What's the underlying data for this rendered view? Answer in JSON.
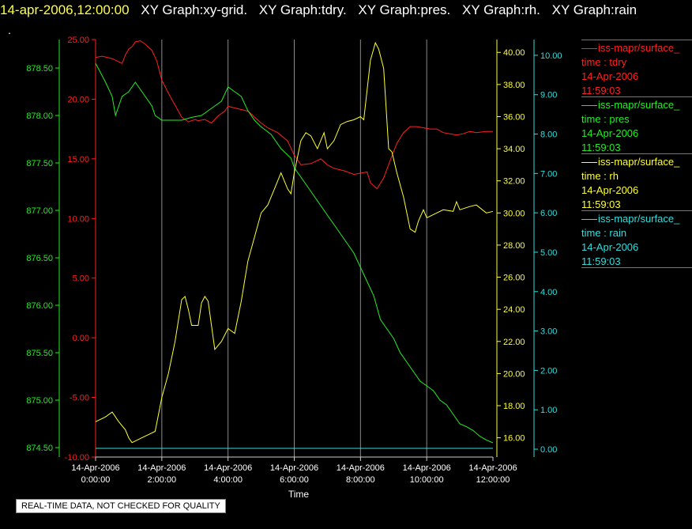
{
  "header": {
    "timestamp": "14-apr-2006,12:00:00",
    "graphs": [
      "XY Graph:xy-grid.",
      "XY Graph:tdry.",
      "XY Graph:pres.",
      "XY Graph:rh.",
      "XY Graph:rain"
    ],
    "dot": "."
  },
  "legend": [
    {
      "title": "iss-mapr/surface_",
      "field": "time : tdry",
      "date": "14-Apr-2006",
      "time": "11:59:03",
      "color": "#ff2020"
    },
    {
      "title": "iss-mapr/surface_",
      "field": "time : pres",
      "date": "14-Apr-2006",
      "time": "11:59:03",
      "color": "#22ee22"
    },
    {
      "title": "iss-mapr/surface_",
      "field": "time : rh",
      "date": "14-Apr-2006",
      "time": "11:59:03",
      "color": "#ffff33"
    },
    {
      "title": "iss-mapr/surface_",
      "field": "time : rain",
      "date": "14-Apr-2006",
      "time": "11:59:03",
      "color": "#33dddd"
    }
  ],
  "footer_note": "REAL-TIME DATA, NOT CHECKED FOR QUALITY",
  "chart_data": {
    "type": "line",
    "title": "",
    "xlabel": "Time",
    "x_ticks": [
      {
        "date": "14-Apr-2006",
        "time": "0:00:00"
      },
      {
        "date": "14-Apr-2006",
        "time": "2:00:00"
      },
      {
        "date": "14-Apr-2006",
        "time": "4:00:00"
      },
      {
        "date": "14-Apr-2006",
        "time": "6:00:00"
      },
      {
        "date": "14-Apr-2006",
        "time": "8:00:00"
      },
      {
        "date": "14-Apr-2006",
        "time": "10:00:00"
      },
      {
        "date": "14-Apr-2006",
        "time": "12:00:00"
      }
    ],
    "x_range_hours": [
      0,
      12
    ],
    "grid": "vertical",
    "axes": {
      "pres": {
        "color": "#22ee22",
        "range": [
          874.4,
          878.8
        ],
        "ticks": [
          "874.50",
          "875.00",
          "875.50",
          "876.00",
          "876.50",
          "877.00",
          "877.50",
          "878.00",
          "878.50"
        ]
      },
      "tdry": {
        "color": "#ff2020",
        "range": [
          -10,
          25
        ],
        "ticks": [
          "-10.00",
          "-5.00",
          "0.00",
          "5.00",
          "10.00",
          "15.00",
          "20.00",
          "25.00"
        ]
      },
      "rh": {
        "color": "#ffff33",
        "range": [
          14.8,
          40.8
        ],
        "ticks": [
          "16.00",
          "18.00",
          "20.00",
          "22.00",
          "24.00",
          "26.00",
          "28.00",
          "30.00",
          "32.00",
          "34.00",
          "36.00",
          "38.00",
          "40.00"
        ]
      },
      "rain": {
        "color": "#33dddd",
        "range": [
          -0.2,
          10.4
        ],
        "ticks": [
          "0.00",
          "1.00",
          "2.00",
          "3.00",
          "4.00",
          "5.00",
          "6.00",
          "7.00",
          "8.00",
          "9.00",
          "10.00"
        ]
      }
    },
    "series": [
      {
        "name": "tdry",
        "axis": "tdry",
        "x": [
          0,
          0.2,
          0.5,
          0.8,
          0.9,
          1.0,
          1.1,
          1.2,
          1.35,
          1.5,
          1.7,
          1.85,
          2.0,
          2.2,
          2.4,
          2.6,
          2.8,
          3.0,
          3.1,
          3.3,
          3.5,
          3.7,
          3.9,
          4.0,
          4.3,
          4.6,
          4.8,
          5.0,
          5.2,
          5.5,
          5.8,
          6.0,
          6.2,
          6.5,
          6.8,
          7.0,
          7.2,
          7.5,
          7.8,
          8.0,
          8.2,
          8.3,
          8.5,
          8.7,
          8.9,
          9.1,
          9.3,
          9.5,
          9.7,
          9.9,
          10.1,
          10.3,
          10.5,
          10.7,
          10.9,
          11.1,
          11.3,
          11.5,
          11.8,
          12.0
        ],
        "y": [
          23.5,
          23.6,
          23.4,
          23.0,
          23.7,
          24.2,
          24.4,
          24.8,
          24.9,
          24.6,
          24.1,
          23.2,
          21.6,
          20.5,
          19.5,
          18.5,
          18.1,
          18.3,
          18.2,
          18.3,
          18.0,
          18.6,
          19.0,
          19.4,
          19.2,
          19.0,
          18.5,
          18.0,
          17.6,
          17.2,
          16.5,
          15.3,
          14.5,
          14.6,
          15.0,
          14.5,
          14.2,
          14.0,
          13.7,
          13.8,
          13.9,
          13.0,
          12.5,
          13.4,
          14.9,
          16.3,
          17.2,
          17.7,
          17.7,
          17.6,
          17.5,
          17.5,
          17.2,
          17.1,
          17.0,
          17.1,
          17.3,
          17.2,
          17.3,
          17.3
        ]
      },
      {
        "name": "pres",
        "axis": "pres",
        "x": [
          0,
          0.15,
          0.3,
          0.5,
          0.6,
          0.8,
          1.0,
          1.2,
          1.3,
          1.5,
          1.7,
          1.8,
          2.0,
          2.3,
          2.6,
          2.9,
          3.2,
          3.4,
          3.6,
          3.8,
          4.0,
          4.2,
          4.4,
          4.6,
          4.8,
          5.0,
          5.3,
          5.6,
          5.9,
          6.0,
          6.2,
          6.5,
          6.8,
          7.0,
          7.3,
          7.6,
          7.8,
          8.0,
          8.2,
          8.4,
          8.6,
          8.8,
          9.0,
          9.2,
          9.4,
          9.6,
          9.8,
          10.0,
          10.2,
          10.4,
          10.6,
          10.8,
          11.0,
          11.2,
          11.4,
          11.6,
          11.8,
          12.0
        ],
        "y": [
          878.55,
          878.45,
          878.35,
          878.2,
          878.0,
          878.2,
          878.25,
          878.35,
          878.3,
          878.2,
          878.1,
          878.0,
          877.95,
          877.95,
          877.95,
          877.98,
          878.0,
          878.05,
          878.1,
          878.15,
          878.3,
          878.25,
          878.2,
          878.05,
          877.95,
          877.88,
          877.8,
          877.65,
          877.55,
          877.45,
          877.35,
          877.2,
          877.05,
          876.95,
          876.8,
          876.65,
          876.55,
          876.4,
          876.25,
          876.1,
          875.85,
          875.75,
          875.65,
          875.5,
          875.4,
          875.3,
          875.2,
          875.15,
          875.1,
          875.0,
          874.95,
          874.85,
          874.75,
          874.72,
          874.68,
          874.62,
          874.58,
          874.55
        ]
      },
      {
        "name": "rh",
        "axis": "rh",
        "x": [
          0,
          0.3,
          0.5,
          0.7,
          0.9,
          1.0,
          1.1,
          1.2,
          1.4,
          1.6,
          1.8,
          2.0,
          2.2,
          2.4,
          2.6,
          2.7,
          2.8,
          2.9,
          3.1,
          3.2,
          3.3,
          3.4,
          3.5,
          3.6,
          3.8,
          4.0,
          4.2,
          4.4,
          4.6,
          4.8,
          5.0,
          5.2,
          5.4,
          5.6,
          5.8,
          5.9,
          6.0,
          6.1,
          6.2,
          6.35,
          6.5,
          6.7,
          6.9,
          7.0,
          7.2,
          7.4,
          7.6,
          7.8,
          8.0,
          8.1,
          8.3,
          8.45,
          8.55,
          8.7,
          8.85,
          8.95,
          9.1,
          9.3,
          9.5,
          9.65,
          9.75,
          9.9,
          10.0,
          10.2,
          10.5,
          10.8,
          10.9,
          11.0,
          11.3,
          11.5,
          11.8,
          12.0
        ],
        "y": [
          17.0,
          17.3,
          17.6,
          17.0,
          16.5,
          16.0,
          15.7,
          15.8,
          16.0,
          16.2,
          16.4,
          18.5,
          20.0,
          22.0,
          24.6,
          24.8,
          24.0,
          23.0,
          23.0,
          24.4,
          24.8,
          24.5,
          23.0,
          21.5,
          22.0,
          22.8,
          22.5,
          24.5,
          27.0,
          28.5,
          30.0,
          30.5,
          31.5,
          32.5,
          31.5,
          31.2,
          32.5,
          33.5,
          34.5,
          35.0,
          34.8,
          34.0,
          35.0,
          34.0,
          34.5,
          35.5,
          35.7,
          35.8,
          36.0,
          35.8,
          39.5,
          40.6,
          40.2,
          39.0,
          34.0,
          33.8,
          32.5,
          31.0,
          29.0,
          28.8,
          29.5,
          30.2,
          29.7,
          29.9,
          30.2,
          30.1,
          30.7,
          30.2,
          30.4,
          30.5,
          30.0,
          30.1
        ]
      },
      {
        "name": "rain",
        "axis": "rain",
        "x": [
          0,
          12
        ],
        "y": [
          0.02,
          0.02
        ]
      }
    ]
  }
}
